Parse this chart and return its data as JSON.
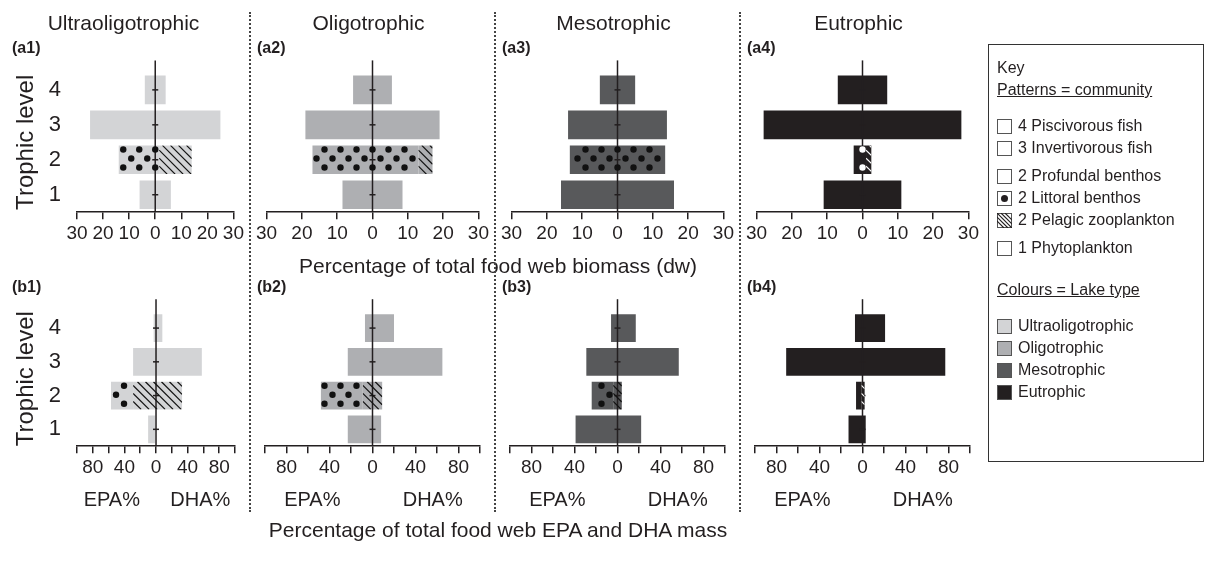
{
  "chart_data": [
    {
      "type": "bar",
      "orientation": "horizontal",
      "title": "Ultraoligotrophic",
      "subtitle": "(a1)",
      "ylabel": "Trophic level",
      "categories": [
        "4",
        "3",
        "2",
        "1"
      ],
      "xlim": [
        -30,
        30
      ],
      "xticks": [
        {
          "value": -30,
          "label": "30"
        },
        {
          "value": -20,
          "label": "20"
        },
        {
          "value": -10,
          "label": "10"
        },
        0,
        10,
        20,
        30
      ],
      "series": [
        {
          "color": "#d3d4d6",
          "base": [
            -4,
            -25,
            null,
            -6
          ],
          "values": [
            8,
            50,
            null,
            12
          ]
        },
        {
          "color": "#d3d4d6",
          "base": [
            null,
            null,
            -14,
            null
          ],
          "values": [
            null,
            null,
            15.5,
            null
          ]
        },
        {
          "color": "#d3d4d6",
          "base": [
            null,
            null,
            1.5,
            null
          ],
          "values": [
            null,
            null,
            12.5,
            null
          ]
        }
      ]
    },
    {
      "type": "bar",
      "orientation": "horizontal",
      "title": "Oligotrophic",
      "subtitle": "(a2)",
      "xlabel": "Percentage of total food web biomass (dw)",
      "categories": [
        "4",
        "3",
        "2",
        "1"
      ],
      "xlim": [
        -30,
        30
      ],
      "xticks": [
        {
          "value": -30,
          "label": "30"
        },
        {
          "value": -20,
          "label": "20"
        },
        {
          "value": -10,
          "label": "10"
        },
        0,
        10,
        20,
        30
      ],
      "tick_labels": "x",
      "series": [
        {
          "color": "#aeafb2",
          "base": [
            -5.5,
            -19,
            null,
            -8.5
          ],
          "values": [
            11,
            38,
            null,
            17
          ]
        },
        {
          "color": "#aeafb2",
          "base": [
            null,
            null,
            -17,
            null
          ],
          "values": [
            null,
            null,
            30,
            null
          ]
        },
        {
          "color": "#aeafb2",
          "base": [
            null,
            null,
            13,
            null
          ],
          "values": [
            null,
            null,
            4,
            null
          ]
        }
      ]
    },
    {
      "type": "bar",
      "orientation": "horizontal",
      "title": "Mesotrophic",
      "subtitle": "(a3)",
      "categories": [
        "4",
        "3",
        "2",
        "1"
      ],
      "xlim": [
        -30,
        30
      ],
      "xticks": [
        {
          "value": -30,
          "label": "30"
        },
        {
          "value": -20,
          "label": "20"
        },
        {
          "value": -10,
          "label": "10"
        },
        0,
        10,
        20,
        30
      ],
      "tick_labels": "x",
      "series": [
        {
          "color": "#58595b",
          "base": [
            -5,
            -14,
            null,
            -16
          ],
          "values": [
            10,
            28,
            null,
            32
          ]
        },
        {
          "color": "#58595b",
          "base": [
            null,
            null,
            -13.5,
            null
          ],
          "values": [
            null,
            null,
            27,
            null
          ]
        }
      ]
    },
    {
      "type": "bar",
      "orientation": "horizontal",
      "title": "Eutrophic",
      "subtitle": "(a4)",
      "categories": [
        "4",
        "3",
        "2",
        "1"
      ],
      "xlim": [
        -30,
        30
      ],
      "xticks": [
        {
          "value": -30,
          "label": "30"
        },
        {
          "value": -20,
          "label": "20"
        },
        {
          "value": -10,
          "label": "10"
        },
        0,
        10,
        20,
        30
      ],
      "tick_labels": "x",
      "series": [
        {
          "color": "#231f20",
          "base": [
            -7,
            -28,
            null,
            -11
          ],
          "values": [
            14,
            56,
            null,
            22
          ]
        },
        {
          "color": "#231f20",
          "base": [
            null,
            null,
            -2.5,
            null
          ],
          "values": [
            null,
            null,
            3.5,
            null
          ]
        },
        {
          "color": "#231f20",
          "base": [
            null,
            null,
            1,
            null
          ],
          "values": [
            null,
            null,
            1.5,
            null
          ]
        }
      ]
    },
    {
      "type": "bar",
      "orientation": "horizontal",
      "subtitle": "(b1)",
      "ylabel": "Trophic level",
      "annotations": [
        "EPA%",
        "DHA%"
      ],
      "categories": [
        "4",
        "3",
        "2",
        "1"
      ],
      "xlim": [
        -100,
        100
      ],
      "xticks": [
        {
          "value": -100,
          "label": null
        },
        {
          "value": -80,
          "label": "80"
        },
        {
          "value": -60,
          "label": null
        },
        {
          "value": -40,
          "label": "40"
        },
        {
          "value": -20,
          "label": null
        },
        0,
        {
          "value": 20,
          "label": null
        },
        40,
        {
          "value": 60,
          "label": null
        },
        80,
        {
          "value": 100,
          "label": null
        }
      ],
      "series": [
        {
          "color": "#d3d4d6",
          "base": [
            -3,
            -29,
            null,
            -10
          ],
          "values": [
            11,
            87,
            null,
            10
          ]
        },
        {
          "color": "#d3d4d6",
          "base": [
            null,
            null,
            -57,
            null
          ],
          "values": [
            null,
            null,
            28,
            null
          ]
        },
        {
          "color": "#d3d4d6",
          "base": [
            null,
            null,
            -29,
            null
          ],
          "values": [
            null,
            null,
            62,
            null
          ]
        }
      ]
    },
    {
      "type": "bar",
      "orientation": "horizontal",
      "subtitle": "(b2)",
      "annotations": [
        "EPA%",
        "DHA%"
      ],
      "xlabel": "Percentage of total food web EPA and DHA mass",
      "categories": [
        "4",
        "3",
        "2",
        "1"
      ],
      "xlim": [
        -100,
        100
      ],
      "xticks": [
        {
          "value": -100,
          "label": null
        },
        {
          "value": -80,
          "label": "80"
        },
        {
          "value": -60,
          "label": null
        },
        {
          "value": -40,
          "label": "40"
        },
        {
          "value": -20,
          "label": null
        },
        0,
        {
          "value": 20,
          "label": null
        },
        40,
        {
          "value": 60,
          "label": null
        },
        80,
        {
          "value": 100,
          "label": null
        }
      ],
      "tick_labels": "x",
      "series": [
        {
          "color": "#aeafb2",
          "base": [
            -7,
            -23,
            null,
            -23
          ],
          "values": [
            27,
            88,
            null,
            31
          ]
        },
        {
          "color": "#aeafb2",
          "base": [
            null,
            null,
            -48,
            null
          ],
          "values": [
            null,
            null,
            39,
            null
          ]
        },
        {
          "color": "#aeafb2",
          "base": [
            null,
            null,
            -9,
            null
          ],
          "values": [
            null,
            null,
            18,
            null
          ]
        }
      ]
    },
    {
      "type": "bar",
      "orientation": "horizontal",
      "subtitle": "(b3)",
      "annotations": [
        "EPA%",
        "DHA%"
      ],
      "categories": [
        "4",
        "3",
        "2",
        "1"
      ],
      "xlim": [
        -100,
        100
      ],
      "xticks": [
        {
          "value": -100,
          "label": null
        },
        {
          "value": -80,
          "label": "80"
        },
        {
          "value": -60,
          "label": null
        },
        {
          "value": -40,
          "label": "40"
        },
        {
          "value": -20,
          "label": null
        },
        0,
        {
          "value": 20,
          "label": null
        },
        40,
        {
          "value": 60,
          "label": null
        },
        80,
        {
          "value": 100,
          "label": null
        }
      ],
      "tick_labels": "x",
      "series": [
        {
          "color": "#58595b",
          "base": [
            -6,
            -29,
            null,
            -39
          ],
          "values": [
            23,
            86,
            null,
            61
          ]
        },
        {
          "color": "#58595b",
          "base": [
            null,
            null,
            -24,
            null
          ],
          "values": [
            null,
            null,
            20,
            null
          ]
        },
        {
          "color": "#58595b",
          "base": [
            null,
            null,
            -4,
            null
          ],
          "values": [
            null,
            null,
            8,
            null
          ]
        }
      ]
    },
    {
      "type": "bar",
      "orientation": "horizontal",
      "subtitle": "(b4)",
      "annotations": [
        "EPA%",
        "DHA%"
      ],
      "categories": [
        "4",
        "3",
        "2",
        "1"
      ],
      "xlim": [
        -100,
        100
      ],
      "xticks": [
        {
          "value": -100,
          "label": null
        },
        {
          "value": -80,
          "label": "80"
        },
        {
          "value": -60,
          "label": null
        },
        {
          "value": -40,
          "label": "40"
        },
        {
          "value": -20,
          "label": null
        },
        0,
        {
          "value": 20,
          "label": null
        },
        40,
        {
          "value": 60,
          "label": null
        },
        80,
        {
          "value": 100,
          "label": null
        }
      ],
      "tick_labels": "x",
      "series": [
        {
          "color": "#231f20",
          "base": [
            -7,
            -71,
            null,
            -13
          ],
          "values": [
            28,
            148,
            null,
            16
          ]
        },
        {
          "color": "#231f20",
          "base": [
            null,
            null,
            -6,
            null
          ],
          "values": [
            null,
            null,
            5,
            null
          ]
        },
        {
          "color": "#231f20",
          "base": [
            null,
            null,
            -1,
            null
          ],
          "values": [
            null,
            null,
            3,
            null
          ]
        }
      ]
    },
    {
      "type": "other",
      "title": "Key",
      "annotations": [
        "Patterns = community",
        "4 Piscivorous fish",
        "3 Invertivorous fish",
        "2 Profundal benthos",
        "2 Littoral benthos",
        "2 Pelagic zooplankton",
        "1 Phytoplankton",
        "Colours = Lake type",
        "Ultraoligotrophic",
        "Oligotrophic",
        "Mesotrophic",
        "Eutrophic"
      ]
    }
  ]
}
